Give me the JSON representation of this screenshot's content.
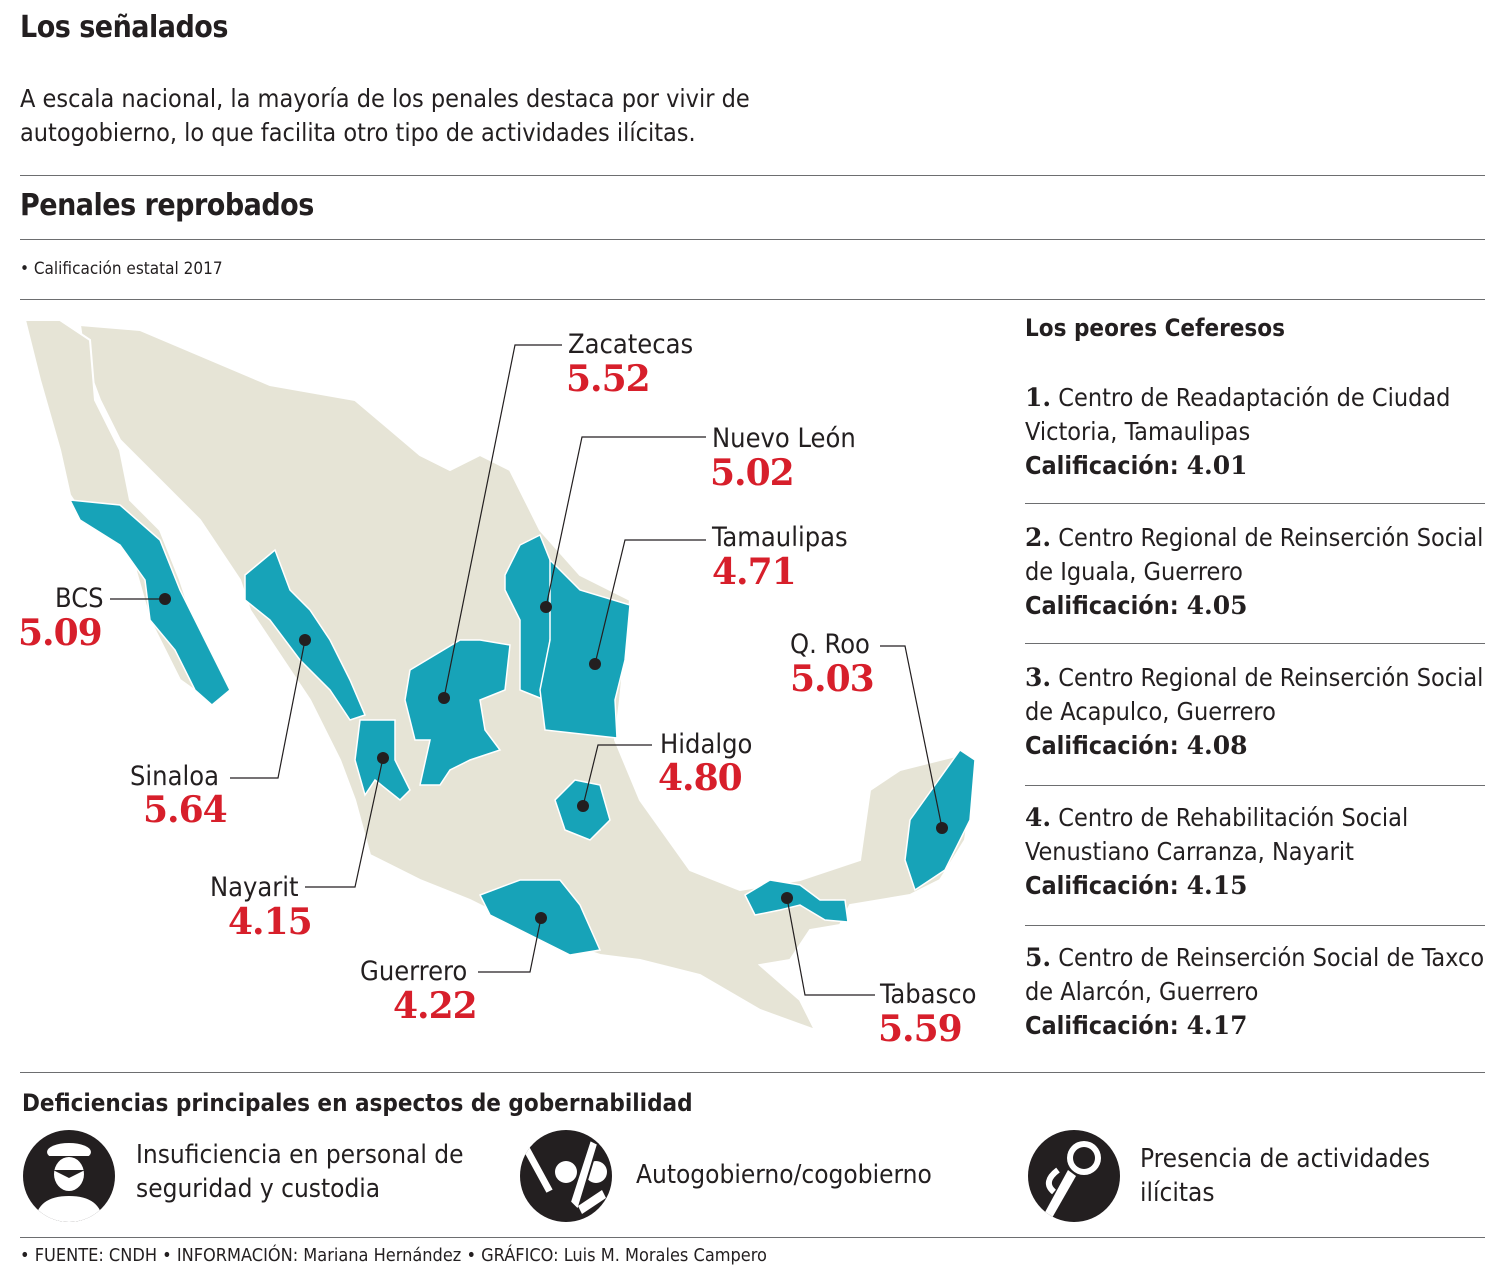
{
  "header": {
    "title": "Los señalados",
    "lead": "A escala nacional, la mayoría de los penales destaca por vivir de autogobierno, lo que facilita otro tipo de actividades ilícitas."
  },
  "section": {
    "title": "Penales reprobados",
    "subtitle": "• Calificación estatal 2017"
  },
  "colors": {
    "highlight": "#17a3b8",
    "land": "#e6e4d6",
    "value": "#d71f2b"
  },
  "map": {
    "states": [
      {
        "name": "Zacatecas",
        "score": "5.52"
      },
      {
        "name": "Nuevo León",
        "score": "5.02"
      },
      {
        "name": "Tamaulipas",
        "score": "4.71"
      },
      {
        "name": "BCS",
        "score": "5.09"
      },
      {
        "name": "Q. Roo",
        "score": "5.03"
      },
      {
        "name": "Hidalgo",
        "score": "4.80"
      },
      {
        "name": "Sinaloa",
        "score": "5.64"
      },
      {
        "name": "Nayarit",
        "score": "4.15"
      },
      {
        "name": "Guerrero",
        "score": "4.22"
      },
      {
        "name": "Tabasco",
        "score": "5.59"
      }
    ]
  },
  "ranking": {
    "title": "Los peores Ceferesos",
    "score_label": "Calificación:",
    "items": [
      {
        "num": "1.",
        "name": "Centro de Readaptación de Ciudad Victoria, Tamaulipas",
        "score": "4.01"
      },
      {
        "num": "2.",
        "name": "Centro Regional de Reinserción Social de Iguala, Guerrero",
        "score": "4.05"
      },
      {
        "num": "3.",
        "name": "Centro Regional de Reinserción Social de Acapulco, Guerrero",
        "score": "4.08"
      },
      {
        "num": "4.",
        "name": "Centro de Rehabilitación Social Venustiano Carranza, Nayarit",
        "score": "4.15"
      },
      {
        "num": "5.",
        "name": "Centro de Reinserción Social de Taxco de Alarcón, Guerrero",
        "score": "4.17"
      }
    ]
  },
  "deficiencies": {
    "title": "Deficiencias principales en aspectos de gobernabilidad",
    "items": [
      {
        "icon": "guard-icon",
        "text": "Insuficiencia en personal de seguridad y custodia"
      },
      {
        "icon": "raised-hands-icon",
        "text": "Autogobierno/cogobierno"
      },
      {
        "icon": "magnifier-icon",
        "text": "Presencia de actividades ilícitas"
      }
    ]
  },
  "footer": "• FUENTE: CNDH • INFORMACIÓN: Mariana Hernández • GRÁFICO: Luis M. Morales Campero"
}
